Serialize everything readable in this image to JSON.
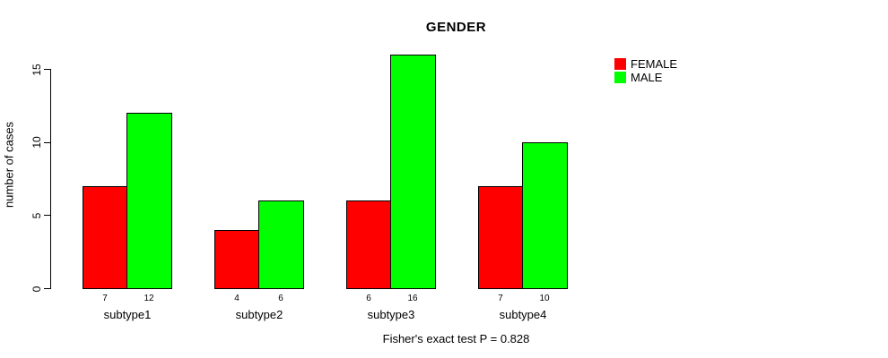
{
  "chart_data": {
    "type": "bar",
    "title": "GENDER",
    "xlabel": "",
    "ylabel": "number of cases",
    "categories": [
      "subtype1",
      "subtype2",
      "subtype3",
      "subtype4"
    ],
    "series": [
      {
        "name": "FEMALE",
        "color": "#ff0000",
        "values": [
          7,
          4,
          6,
          7
        ]
      },
      {
        "name": "MALE",
        "color": "#00ff00",
        "values": [
          12,
          6,
          16,
          10
        ]
      }
    ],
    "yticks": [
      0,
      5,
      10,
      15
    ],
    "ylim": [
      0,
      16
    ],
    "grid": false,
    "bar_value_labels_shown": true,
    "legend_position": "right",
    "note": "Fisher's exact test P = 0.828"
  },
  "legend": {
    "items": [
      {
        "label": "FEMALE",
        "color": "#ff0000"
      },
      {
        "label": "MALE",
        "color": "#00ff00"
      }
    ]
  }
}
